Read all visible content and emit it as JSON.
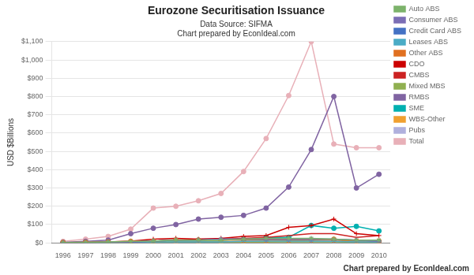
{
  "chart_data": {
    "type": "line",
    "title": "Eurozone Securitisation Issuance",
    "subtitle": [
      "Data Source: SIFMA",
      "Chart prepared by EconIdeal.com"
    ],
    "annotations": [
      "Chart prepared by EconIdeal.com"
    ],
    "ylabel": "USD $Billions",
    "x": [
      1996,
      1997,
      1998,
      1999,
      2000,
      2001,
      2002,
      2003,
      2004,
      2005,
      2006,
      2007,
      2008,
      2009,
      2010
    ],
    "xlim": [
      1995.5,
      2010.5
    ],
    "xticks": [
      1996,
      1997,
      1998,
      1999,
      2000,
      2001,
      2002,
      2003,
      2004,
      2005,
      2006,
      2007,
      2008,
      2009,
      2010
    ],
    "ylim": [
      0,
      1100
    ],
    "yticks": [
      {
        "value": 0,
        "label": "$0"
      },
      {
        "value": 100,
        "label": "$100"
      },
      {
        "value": 200,
        "label": "$200"
      },
      {
        "value": 300,
        "label": "$300"
      },
      {
        "value": 400,
        "label": "$400"
      },
      {
        "value": 500,
        "label": "$500"
      },
      {
        "value": 600,
        "label": "$600"
      },
      {
        "value": 700,
        "label": "$700"
      },
      {
        "value": 800,
        "label": "$800"
      },
      {
        "value": 900,
        "label": "$900"
      },
      {
        "value": 1000,
        "label": "$1,000"
      },
      {
        "value": 1100,
        "label": "$1,100"
      }
    ],
    "grid": true,
    "legend": "right",
    "series": [
      {
        "name": "Auto ABS",
        "color": "#7cb36b",
        "marker": "star",
        "values": [
          2,
          3,
          5,
          8,
          10,
          15,
          15,
          15,
          20,
          25,
          25,
          25,
          20,
          15,
          15
        ]
      },
      {
        "name": "Consumer ABS",
        "color": "#7b6eb5",
        "marker": "star",
        "values": [
          1,
          2,
          3,
          5,
          10,
          15,
          15,
          20,
          20,
          20,
          20,
          20,
          20,
          15,
          10
        ]
      },
      {
        "name": "Credit Card ABS",
        "color": "#4472c4",
        "marker": "plus",
        "values": [
          1,
          2,
          3,
          5,
          10,
          15,
          15,
          20,
          20,
          20,
          20,
          20,
          20,
          15,
          10
        ]
      },
      {
        "name": "Leases ABS",
        "color": "#4bacc6",
        "marker": "plus",
        "values": [
          1,
          1,
          2,
          3,
          5,
          5,
          5,
          5,
          8,
          10,
          10,
          10,
          8,
          5,
          5
        ]
      },
      {
        "name": "Other ABS",
        "color": "#e07020",
        "marker": "circle",
        "values": [
          2,
          3,
          5,
          8,
          10,
          15,
          15,
          15,
          15,
          15,
          15,
          15,
          15,
          10,
          8
        ]
      },
      {
        "name": "CDO",
        "color": "#cc0000",
        "marker": "plus",
        "values": [
          1,
          2,
          5,
          10,
          20,
          25,
          20,
          25,
          35,
          40,
          85,
          95,
          130,
          50,
          40
        ]
      },
      {
        "name": "CMBS",
        "color": "#cc2222",
        "marker": "none",
        "values": [
          1,
          2,
          3,
          5,
          10,
          15,
          20,
          20,
          25,
          30,
          40,
          50,
          50,
          30,
          40
        ]
      },
      {
        "name": "Mixed MBS",
        "color": "#90b050",
        "marker": "none",
        "values": [
          1,
          1,
          2,
          3,
          5,
          5,
          5,
          5,
          5,
          5,
          5,
          5,
          5,
          3,
          3
        ]
      },
      {
        "name": "RMBS",
        "color": "#8064a2",
        "marker": "circle",
        "values": [
          3,
          8,
          15,
          50,
          80,
          100,
          130,
          140,
          150,
          190,
          305,
          510,
          800,
          300,
          375
        ]
      },
      {
        "name": "SME",
        "color": "#00b0b0",
        "marker": "circle",
        "values": [
          1,
          2,
          3,
          5,
          10,
          15,
          15,
          15,
          20,
          30,
          30,
          95,
          80,
          90,
          65
        ]
      },
      {
        "name": "WBS-Other",
        "color": "#f0a030",
        "marker": "circle",
        "values": [
          1,
          2,
          3,
          5,
          5,
          5,
          5,
          5,
          5,
          5,
          10,
          15,
          20,
          10,
          10
        ]
      },
      {
        "name": "Pubs",
        "color": "#b0b0dd",
        "marker": "star",
        "values": [
          1,
          2,
          3,
          5,
          5,
          5,
          5,
          5,
          5,
          5,
          5,
          5,
          5,
          5,
          5
        ]
      },
      {
        "name": "Total",
        "color": "#e8b0b8",
        "marker": "circle",
        "values": [
          8,
          20,
          35,
          75,
          190,
          200,
          230,
          270,
          390,
          570,
          805,
          1100,
          540,
          520,
          520
        ]
      }
    ]
  }
}
